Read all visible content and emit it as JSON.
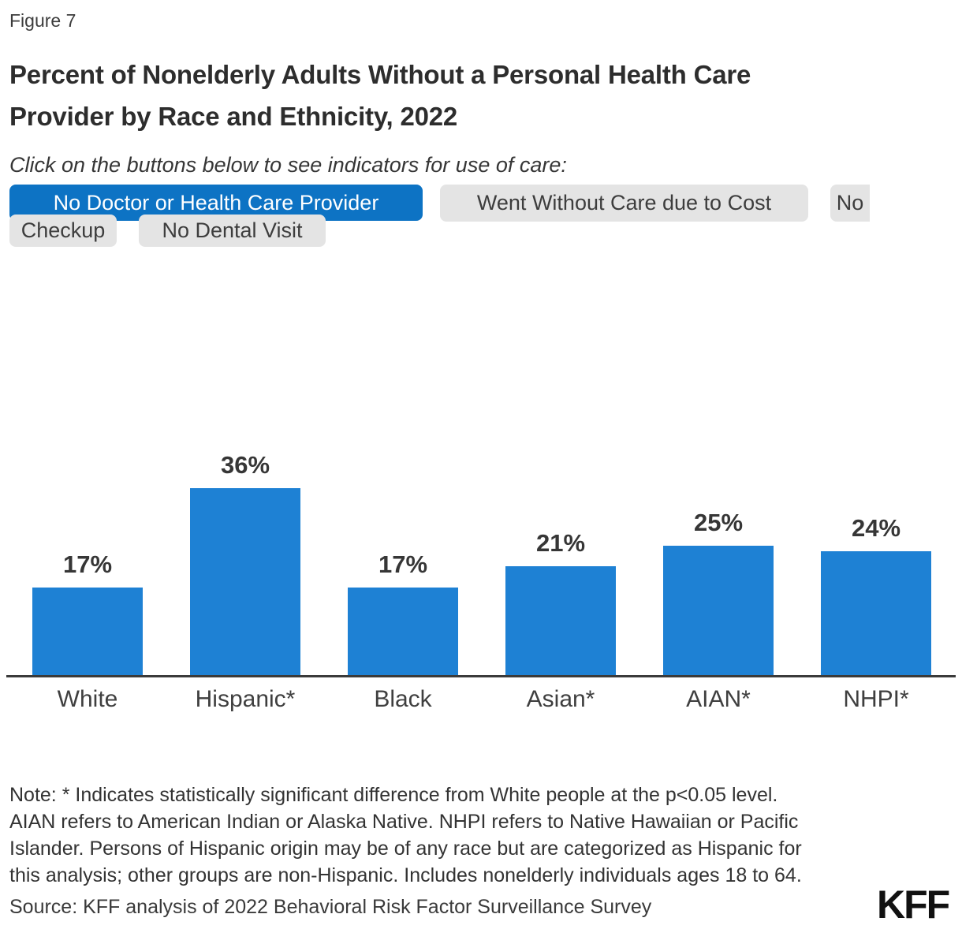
{
  "figure_label": "Figure 7",
  "title": {
    "line1": "Percent of Nonelderly Adults Without a Personal Health Care",
    "line2": "Provider by Race and Ethnicity, 2022"
  },
  "toolbar": {
    "intro": "Click on the buttons below to see indicators for use of care:",
    "buttons": {
      "no_doctor": {
        "label": "No Doctor or Health Care Provider",
        "state": "selected"
      },
      "cost": {
        "label": "Went Without Care due to Cost",
        "state": "default"
      },
      "checkup_line1": {
        "label": "No",
        "state": "default"
      },
      "checkup_line2": {
        "label": "Checkup",
        "state": "default"
      },
      "dental": {
        "label": "No Dental Visit",
        "state": "default"
      }
    }
  },
  "chart_data": {
    "type": "bar",
    "categories": [
      "White",
      "Hispanic*",
      "Black",
      "Asian*",
      "AIAN*",
      "NHPI*"
    ],
    "values": [
      17,
      36,
      17,
      21,
      25,
      24
    ],
    "value_labels": [
      "17%",
      "36%",
      "17%",
      "21%",
      "25%",
      "24%"
    ],
    "title": "Percent of Nonelderly Adults Without a Personal Health Care Provider by Race and Ethnicity, 2022",
    "xlabel": "",
    "ylabel": "",
    "ylim": [
      0,
      40
    ],
    "grid": false,
    "legend": false,
    "bar_color": "#1e81d4"
  },
  "note": {
    "lines": [
      "Note: * Indicates statistically significant difference from White people at the p<0.05 level.",
      "AIAN refers to American Indian or Alaska Native. NHPI refers to Native Hawaiian or Pacific",
      "Islander. Persons of Hispanic origin may be of any race but are categorized as Hispanic for",
      "this analysis; other groups are non-Hispanic. Includes nonelderly individuals ages 18 to 64."
    ]
  },
  "source": "Source: KFF analysis of 2022 Behavioral Risk Factor Surveillance Survey",
  "logo": "KFF",
  "colors": {
    "selected_button_blue": "#0d73c4",
    "bar_blue": "#1e81d4",
    "button_gray": "#e4e4e4",
    "axis_dark": "#3a3a3a"
  }
}
